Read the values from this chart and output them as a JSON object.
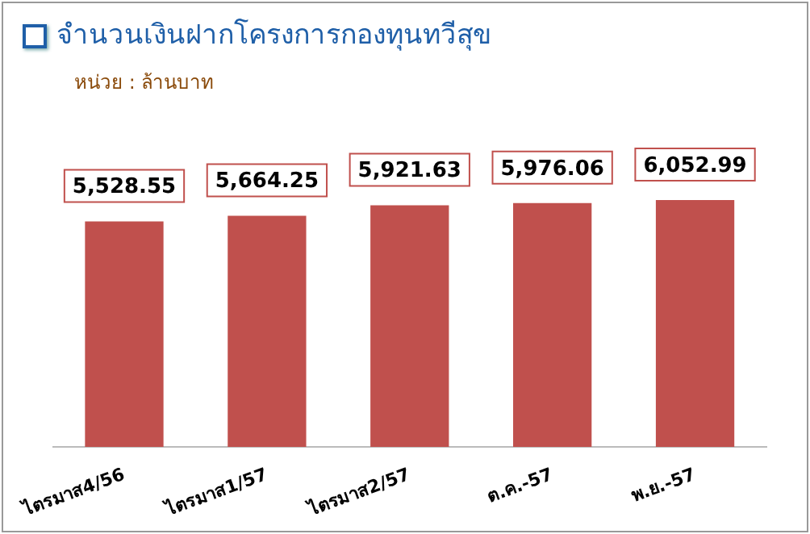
{
  "chart_data": {
    "type": "bar",
    "title": "จำนวนเงินฝากโครงการกองทุนทวีสุข",
    "subtitle": "หน่วย : ล้านบาท",
    "categories": [
      "ไตรมาส4/56",
      "ไตรมาส1/57",
      "ไตรมาส2/57",
      "ต.ค.-57",
      "พ.ย.-57"
    ],
    "values": [
      5528.55,
      5664.25,
      5921.63,
      5976.06,
      6052.99
    ],
    "value_labels": [
      "5,528.55",
      "5,664.25",
      "5,921.63",
      "5,976.06",
      "6,052.99"
    ],
    "color": "#c0504d",
    "tick_labels": "x",
    "grid": false,
    "legend": false
  }
}
